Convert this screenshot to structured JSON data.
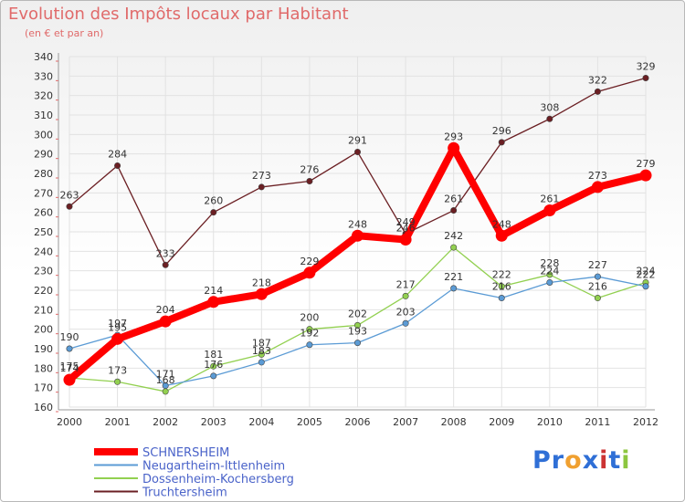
{
  "chart_data": {
    "type": "line",
    "title": "Evolution des Impôts locaux par Habitant",
    "subtitle": "(en € et par an)",
    "x": [
      "2000",
      "2001",
      "2002",
      "2003",
      "2004",
      "2005",
      "2006",
      "2007",
      "2008",
      "2009",
      "2010",
      "2011",
      "2012"
    ],
    "ylim": [
      160,
      340
    ],
    "yticks": [
      160,
      170,
      180,
      190,
      200,
      210,
      220,
      230,
      240,
      250,
      260,
      270,
      280,
      290,
      300,
      310,
      320,
      330,
      340
    ],
    "grid": true,
    "legend_position": "bottom-left",
    "series": [
      {
        "name": "SCHNERSHEIM",
        "color": "#ff0000",
        "values": [
          174,
          195,
          204,
          214,
          218,
          229,
          248,
          246,
          293,
          248,
          261,
          273,
          279
        ]
      },
      {
        "name": "Neugartheim-Ittlenheim",
        "color": "#5b9bd5",
        "values": [
          190,
          197,
          171,
          176,
          183,
          192,
          193,
          203,
          221,
          216,
          224,
          227,
          222
        ]
      },
      {
        "name": "Dossenheim-Kochersberg",
        "color": "#92d050",
        "values": [
          175,
          173,
          168,
          181,
          187,
          200,
          202,
          217,
          242,
          222,
          228,
          216,
          224
        ]
      },
      {
        "name": "Truchtersheim",
        "color": "#6b1f23",
        "values": [
          263,
          284,
          233,
          260,
          273,
          276,
          291,
          249,
          261,
          296,
          308,
          322,
          329
        ]
      }
    ]
  },
  "logo": {
    "text": "Proxiti",
    "letters": [
      "P",
      "r",
      "o",
      "x",
      "i",
      "t",
      "i"
    ],
    "colors": [
      "#2f6fd6",
      "#2f6fd6",
      "#f0a030",
      "#2f6fd6",
      "#cc3333",
      "#2f6fd6",
      "#8cc63f"
    ]
  }
}
